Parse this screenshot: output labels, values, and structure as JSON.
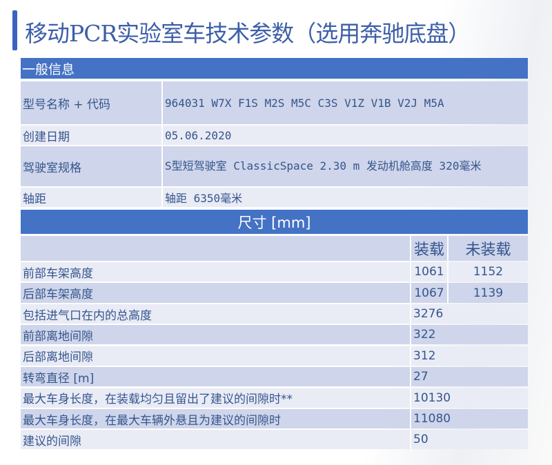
{
  "title": "移动PCR实验室车技术参数（选用奔驰底盘）",
  "general": {
    "header": "一般信息",
    "rows": [
      {
        "label": "型号名称 + 代码",
        "value": "964031 W7X F1S M2S M5C C3S V1Z V1B V2J M5A"
      },
      {
        "label": "创建日期",
        "value": "05.06.2020"
      },
      {
        "label": "驾驶室规格",
        "value": "S型短驾驶室 ClassicSpace 2.30 m 发动机舱高度 320毫米"
      },
      {
        "label": "轴距",
        "value": "轴距 6350毫米"
      }
    ]
  },
  "dimensions": {
    "header": "尺寸 [mm]",
    "col_loaded": "装载",
    "col_unloaded": "未装载",
    "split_rows": [
      {
        "label": "前部车架高度",
        "loaded": "1061",
        "unloaded": "1152"
      },
      {
        "label": "后部车架高度",
        "loaded": "1067",
        "unloaded": "1139"
      }
    ],
    "rows": [
      {
        "label": "包括进气口在内的总高度",
        "value": "3276"
      },
      {
        "label": "前部离地间隙",
        "value": "322"
      },
      {
        "label": "后部离地间隙",
        "value": "312"
      },
      {
        "label": "转弯直径 [m]",
        "value": "27"
      },
      {
        "label": "最大车身长度，在装载均匀且留出了建议的间隙时**",
        "value": "10130"
      },
      {
        "label": "最大车身长度，在最大车辆外悬且为建议的间隙时",
        "value": "11080"
      },
      {
        "label": "建议的间隙",
        "value": "50"
      }
    ]
  }
}
